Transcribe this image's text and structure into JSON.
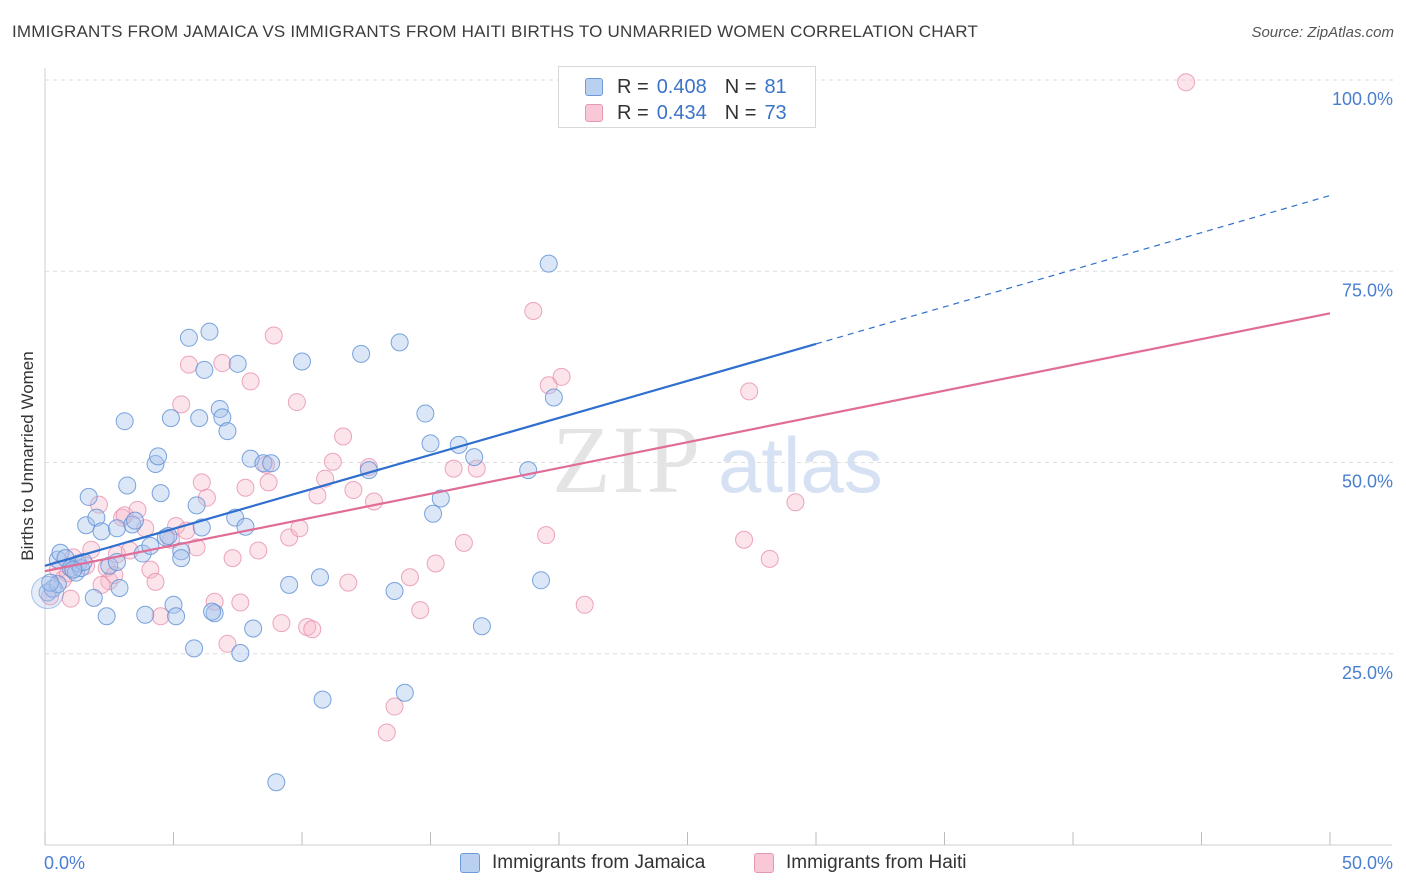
{
  "title": "IMMIGRANTS FROM JAMAICA VS IMMIGRANTS FROM HAITI BIRTHS TO UNMARRIED WOMEN CORRELATION CHART",
  "source": "Source: ZipAtlas.com",
  "watermark": {
    "zip": "ZIP",
    "atlas": "atlas"
  },
  "legend": {
    "rows": [
      {
        "r_label": "R =",
        "r_value": "0.408",
        "n_label": "N =",
        "n_value": "81"
      },
      {
        "r_label": "R =",
        "r_value": "0.434",
        "n_label": "N =",
        "n_value": "73"
      }
    ]
  },
  "bottom_legend": [
    "Immigrants from Jamaica",
    "Immigrants from Haiti"
  ],
  "colors": {
    "blue_fill": "#a9c4ec",
    "blue_stroke": "#5b8ed6",
    "blue_line": "#2f6fce",
    "pink_fill": "#f6b8cb",
    "pink_stroke": "#e58aa8",
    "pink_line": "#e06d98",
    "tick_label": "#4a7fd0",
    "grid": "#dedede"
  },
  "chart_data": {
    "type": "scatter",
    "title": "IMMIGRANTS FROM JAMAICA VS IMMIGRANTS FROM HAITI BIRTHS TO UNMARRIED WOMEN CORRELATION CHART",
    "xlabel": "",
    "ylabel": "Births to Unmarried Women",
    "xlim": [
      0,
      50
    ],
    "ylim": [
      0,
      102
    ],
    "x_tick_labels": [
      "0.0%",
      "50.0%"
    ],
    "y_ticks": [
      25,
      50,
      75,
      100
    ],
    "y_tick_labels": [
      "25.0%",
      "50.0%",
      "75.0%",
      "100.0%"
    ],
    "grid": true,
    "series": [
      {
        "name": "Immigrants from Jamaica",
        "R": 0.408,
        "N": 81,
        "trend": {
          "x0": 0,
          "y0": 36.5,
          "x1": 30,
          "y1": 65.5,
          "dash_to_x": 50,
          "dash_to_y": 84.9
        },
        "points": [
          [
            0.1,
            33.0
          ],
          [
            0.3,
            33.5
          ],
          [
            0.5,
            34.1
          ],
          [
            0.5,
            37.3
          ],
          [
            0.6,
            38.2
          ],
          [
            0.8,
            37.5
          ],
          [
            1.0,
            36.2
          ],
          [
            1.2,
            35.6
          ],
          [
            1.3,
            36.8
          ],
          [
            1.4,
            36.2
          ],
          [
            1.5,
            37.0
          ],
          [
            1.6,
            41.8
          ],
          [
            1.7,
            45.5
          ],
          [
            1.9,
            32.3
          ],
          [
            2.0,
            42.8
          ],
          [
            2.2,
            41.0
          ],
          [
            2.4,
            29.9
          ],
          [
            2.5,
            36.5
          ],
          [
            2.8,
            37.0
          ],
          [
            2.8,
            41.4
          ],
          [
            2.9,
            33.6
          ],
          [
            3.1,
            55.4
          ],
          [
            3.2,
            47.0
          ],
          [
            3.4,
            41.9
          ],
          [
            3.5,
            42.4
          ],
          [
            3.8,
            38.1
          ],
          [
            3.9,
            30.1
          ],
          [
            4.1,
            39.1
          ],
          [
            4.3,
            49.8
          ],
          [
            4.4,
            50.8
          ],
          [
            4.5,
            46.0
          ],
          [
            4.7,
            40.2
          ],
          [
            4.8,
            40.4
          ],
          [
            4.9,
            55.8
          ],
          [
            5.0,
            31.4
          ],
          [
            5.1,
            29.9
          ],
          [
            5.3,
            38.4
          ],
          [
            5.3,
            37.5
          ],
          [
            5.6,
            66.3
          ],
          [
            5.8,
            25.7
          ],
          [
            5.9,
            44.4
          ],
          [
            6.0,
            55.8
          ],
          [
            6.1,
            41.5
          ],
          [
            6.2,
            62.1
          ],
          [
            6.4,
            67.1
          ],
          [
            6.6,
            30.3
          ],
          [
            6.8,
            57.0
          ],
          [
            6.9,
            55.9
          ],
          [
            7.1,
            54.1
          ],
          [
            7.4,
            42.8
          ],
          [
            7.5,
            62.9
          ],
          [
            7.6,
            25.1
          ],
          [
            7.8,
            41.6
          ],
          [
            8.0,
            50.5
          ],
          [
            8.1,
            28.3
          ],
          [
            8.5,
            49.9
          ],
          [
            8.8,
            49.9
          ],
          [
            9.0,
            8.2
          ],
          [
            9.5,
            34.0
          ],
          [
            10.0,
            63.2
          ],
          [
            10.7,
            35.0
          ],
          [
            10.8,
            19.0
          ],
          [
            12.3,
            64.2
          ],
          [
            12.6,
            49.0
          ],
          [
            13.6,
            33.2
          ],
          [
            13.8,
            65.7
          ],
          [
            14.0,
            19.9
          ],
          [
            14.8,
            56.4
          ],
          [
            15.0,
            52.5
          ],
          [
            15.1,
            43.3
          ],
          [
            15.4,
            45.3
          ],
          [
            16.1,
            52.3
          ],
          [
            16.7,
            50.7
          ],
          [
            17.0,
            28.6
          ],
          [
            18.8,
            49.0
          ],
          [
            19.3,
            34.6
          ],
          [
            19.6,
            76.0
          ],
          [
            19.8,
            58.5
          ],
          [
            0.2,
            34.3
          ],
          [
            1.1,
            36.0
          ],
          [
            6.5,
            30.5
          ]
        ]
      },
      {
        "name": "Immigrants from Haiti",
        "R": 0.434,
        "N": 73,
        "trend": {
          "x0": 0,
          "y0": 35.8,
          "x1": 50,
          "y1": 69.5
        },
        "points": [
          [
            0.2,
            32.5
          ],
          [
            0.5,
            36.0
          ],
          [
            0.7,
            34.7
          ],
          [
            0.9,
            35.5
          ],
          [
            1.0,
            32.2
          ],
          [
            1.1,
            37.6
          ],
          [
            1.6,
            36.5
          ],
          [
            1.8,
            38.6
          ],
          [
            2.1,
            44.5
          ],
          [
            2.4,
            36.2
          ],
          [
            2.5,
            34.5
          ],
          [
            2.7,
            35.3
          ],
          [
            2.8,
            38.0
          ],
          [
            3.0,
            42.8
          ],
          [
            3.1,
            43.1
          ],
          [
            3.3,
            38.5
          ],
          [
            3.6,
            43.8
          ],
          [
            3.9,
            41.4
          ],
          [
            4.1,
            36.0
          ],
          [
            4.3,
            34.4
          ],
          [
            4.5,
            29.9
          ],
          [
            4.9,
            39.9
          ],
          [
            5.1,
            41.7
          ],
          [
            5.3,
            57.6
          ],
          [
            5.6,
            62.8
          ],
          [
            5.9,
            38.9
          ],
          [
            6.1,
            47.4
          ],
          [
            6.3,
            45.4
          ],
          [
            6.6,
            31.8
          ],
          [
            6.9,
            63.0
          ],
          [
            7.1,
            26.3
          ],
          [
            7.3,
            37.5
          ],
          [
            7.6,
            31.7
          ],
          [
            7.8,
            46.7
          ],
          [
            8.0,
            60.6
          ],
          [
            8.3,
            38.5
          ],
          [
            8.6,
            49.7
          ],
          [
            8.7,
            47.4
          ],
          [
            8.9,
            66.6
          ],
          [
            9.2,
            29.0
          ],
          [
            9.5,
            40.2
          ],
          [
            9.8,
            57.9
          ],
          [
            9.9,
            41.4
          ],
          [
            10.2,
            28.5
          ],
          [
            10.4,
            28.2
          ],
          [
            10.6,
            45.7
          ],
          [
            10.9,
            47.9
          ],
          [
            11.2,
            50.1
          ],
          [
            11.6,
            53.4
          ],
          [
            11.8,
            34.3
          ],
          [
            12.0,
            46.4
          ],
          [
            12.6,
            49.4
          ],
          [
            12.8,
            44.9
          ],
          [
            13.3,
            14.7
          ],
          [
            13.6,
            18.1
          ],
          [
            14.2,
            35.0
          ],
          [
            14.6,
            30.7
          ],
          [
            15.2,
            36.8
          ],
          [
            15.9,
            49.2
          ],
          [
            16.3,
            39.5
          ],
          [
            16.8,
            49.2
          ],
          [
            19.0,
            69.8
          ],
          [
            19.5,
            40.5
          ],
          [
            19.6,
            60.1
          ],
          [
            20.1,
            61.2
          ],
          [
            21.0,
            31.4
          ],
          [
            27.2,
            39.9
          ],
          [
            27.4,
            59.3
          ],
          [
            28.2,
            37.4
          ],
          [
            29.2,
            44.8
          ],
          [
            44.4,
            99.7
          ],
          [
            5.5,
            41.1
          ],
          [
            2.2,
            34.0
          ]
        ]
      }
    ]
  }
}
